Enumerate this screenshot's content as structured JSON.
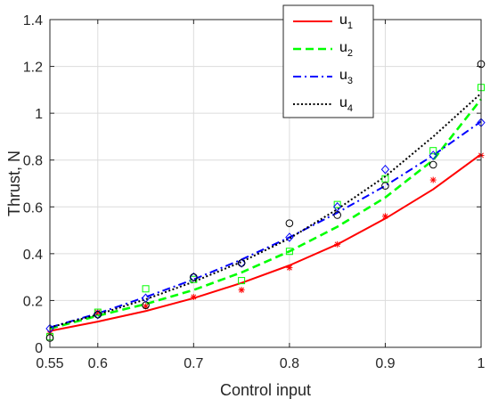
{
  "chart_data": {
    "type": "line",
    "xlabel": "Control input",
    "ylabel": "Thrust, N",
    "xlim": [
      0.55,
      1.0
    ],
    "ylim": [
      0,
      1.4
    ],
    "xticks": [
      0.55,
      0.6,
      0.7,
      0.8,
      0.9,
      1.0
    ],
    "xtick_labels": [
      "0.55",
      "0.6",
      "0.7",
      "0.8",
      "0.9",
      "1"
    ],
    "yticks": [
      0,
      0.2,
      0.4,
      0.6,
      0.8,
      1.0,
      1.2,
      1.4
    ],
    "ytick_labels": [
      "0",
      "0.2",
      "0.4",
      "0.6",
      "0.8",
      "1",
      "1.2",
      "1.4"
    ],
    "grid": true,
    "legend_position": "top-right",
    "series": [
      {
        "name": "u1",
        "legend_base": "u",
        "legend_sub": "1",
        "color": "#ff0000",
        "dash": "solid",
        "marker": "asterisk",
        "x": [
          0.55,
          0.6,
          0.65,
          0.7,
          0.75,
          0.8,
          0.85,
          0.9,
          0.95,
          1.0
        ],
        "values": [
          0.07,
          0.11,
          0.155,
          0.21,
          0.275,
          0.35,
          0.44,
          0.55,
          0.675,
          0.825
        ],
        "points_y": [
          0.06,
          0.15,
          0.175,
          0.215,
          0.245,
          0.34,
          0.44,
          0.56,
          0.715,
          0.82
        ]
      },
      {
        "name": "u2",
        "legend_base": "u",
        "legend_sub": "2",
        "color": "#00ff00",
        "dash": "dashed",
        "marker": "square",
        "x": [
          0.55,
          0.6,
          0.65,
          0.7,
          0.75,
          0.8,
          0.85,
          0.9,
          0.95,
          1.0
        ],
        "values": [
          0.08,
          0.135,
          0.185,
          0.245,
          0.32,
          0.41,
          0.515,
          0.64,
          0.8,
          1.06
        ],
        "points_y": [
          0.045,
          0.15,
          0.25,
          0.29,
          0.285,
          0.41,
          0.61,
          0.72,
          0.84,
          1.11
        ]
      },
      {
        "name": "u3",
        "legend_base": "u",
        "legend_sub": "3",
        "color": "#0000ff",
        "dash": "dashdot",
        "marker": "diamond",
        "x": [
          0.55,
          0.6,
          0.65,
          0.7,
          0.75,
          0.8,
          0.85,
          0.9,
          0.95,
          1.0
        ],
        "values": [
          0.085,
          0.145,
          0.215,
          0.29,
          0.375,
          0.47,
          0.575,
          0.69,
          0.82,
          0.965
        ],
        "points_y": [
          0.08,
          0.14,
          0.21,
          0.3,
          0.36,
          0.47,
          0.6,
          0.76,
          0.82,
          0.96
        ]
      },
      {
        "name": "u4",
        "legend_base": "u",
        "legend_sub": "4",
        "color": "#000000",
        "dash": "dotted",
        "marker": "circle",
        "x": [
          0.55,
          0.6,
          0.65,
          0.7,
          0.75,
          0.8,
          0.85,
          0.9,
          0.95,
          1.0
        ],
        "values": [
          0.085,
          0.14,
          0.205,
          0.28,
          0.365,
          0.465,
          0.59,
          0.73,
          0.9,
          1.085
        ],
        "points_y": [
          0.04,
          0.14,
          0.18,
          0.3,
          0.36,
          0.53,
          0.565,
          0.69,
          0.78,
          1.21
        ]
      }
    ]
  }
}
